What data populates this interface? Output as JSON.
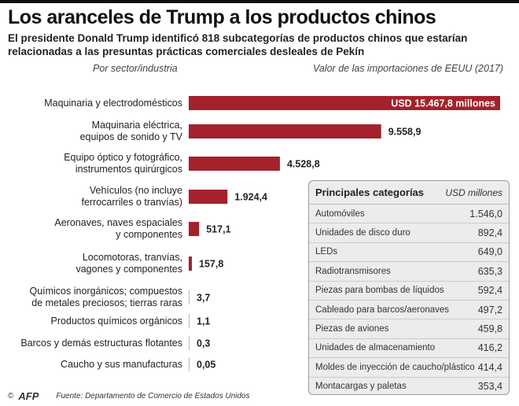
{
  "header": {
    "title": "Los aranceles de Trump a los productos chinos",
    "subtitle": "El presidente Donald Trump identificó 818 subcategorías de productos chinos que estarían relacionadas a las presuntas prácticas comerciales desleales de Pekín"
  },
  "chart_data": {
    "type": "bar",
    "orientation": "horizontal",
    "category_header": "Por sector/industria",
    "value_header": "Valor de las importaciones de EEUU (2017)",
    "unit": "USD millones",
    "categories": [
      "Maquinaria y electrodomésticos",
      "Maquinaria eléctrica,\nequipos de sonido y TV",
      "Equipo óptico y fotográfico,\ninstrumentos quirúrgicos",
      "Vehículos (no incluye\nferrocarriles o tranvías)",
      "Aeronaves, naves espaciales\ny componentes",
      "Locomotoras, tranvías,\nvagones y componentes",
      "Químicos inorgánicos; compuestos\nde metales preciosos; tierras raras",
      "Productos químicos orgánicos",
      "Barcos y demás estructuras flotantes",
      "Caucho y sus manufacturas"
    ],
    "values": [
      15467.8,
      9558.9,
      4528.8,
      1924.4,
      517.1,
      157.8,
      3.7,
      1.1,
      0.3,
      0.05
    ],
    "labels": [
      "USD 15.467,8 millones",
      "9.558,9",
      "4.528,8",
      "1.924,4",
      "517,1",
      "157,8",
      "3,7",
      "1,1",
      "0,3",
      "0,05"
    ],
    "bar_color": "#a3222c",
    "xlim": [
      0,
      15467.8
    ]
  },
  "table": {
    "title": "Principales categorías",
    "unit": "USD millones",
    "rows": [
      {
        "label": "Automóviles",
        "value": "1.546,0"
      },
      {
        "label": "Unidades de disco duro",
        "value": "892,4"
      },
      {
        "label": "LEDs",
        "value": "649,0"
      },
      {
        "label": "Radiotransmisores",
        "value": "635,3"
      },
      {
        "label": "Piezas para bombas de líquidos",
        "value": "592,4"
      },
      {
        "label": "Cableado para barcos/aeronaves",
        "value": "497,2"
      },
      {
        "label": "Piezas de aviones",
        "value": "459,8"
      },
      {
        "label": "Unidades de almacenamiento",
        "value": "416,2"
      },
      {
        "label": "Moldes de inyección de caucho/plástico",
        "value": "414,4"
      },
      {
        "label": "Montacargas y paletas",
        "value": "353,4"
      }
    ]
  },
  "footer": {
    "copyright": "©",
    "logo": "AFP",
    "source": "Fuente: Departamento de Comercio de Estados Unidos"
  }
}
